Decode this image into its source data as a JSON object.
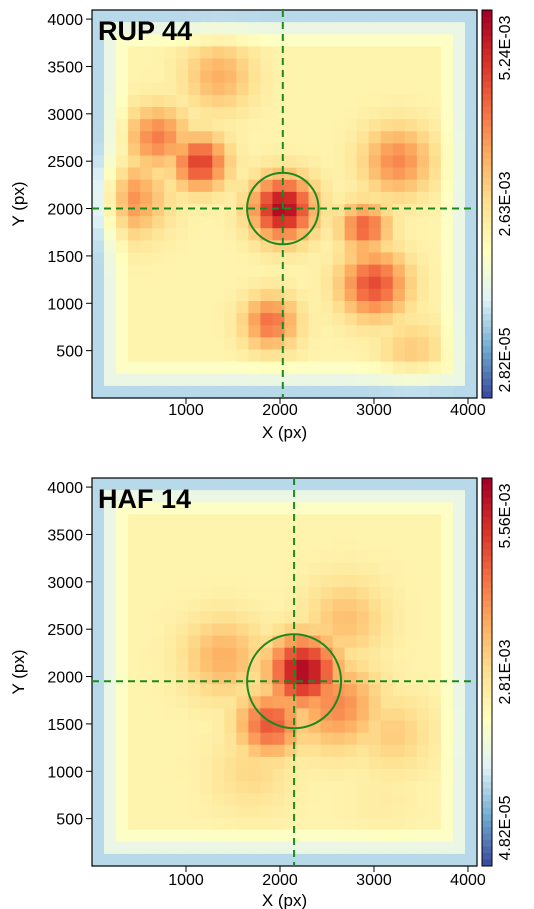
{
  "chart_data": [
    {
      "type": "heatmap",
      "title": "RUP 44",
      "xlabel": "X (px)",
      "ylabel": "Y (px)",
      "xlim": [
        0,
        4096
      ],
      "ylim": [
        0,
        4096
      ],
      "x_ticks": [
        1000,
        2000,
        3000,
        4000
      ],
      "y_ticks": [
        500,
        1000,
        1500,
        2000,
        2500,
        3000,
        3500,
        4000
      ],
      "colorbar": {
        "min": 2.82e-05,
        "max": 0.00524,
        "tick_labels": [
          "5.24E-03",
          "2.63E-03",
          "2.82E-05"
        ]
      },
      "colormap": [
        "#3b4fa0",
        "#74add1",
        "#e0f3f8",
        "#ffffbf",
        "#fee090",
        "#fdae61",
        "#f46d43",
        "#d73027",
        "#a50026"
      ],
      "center": {
        "x": 2030,
        "y": 2000
      },
      "core_radius": 380,
      "density_peaks": [
        {
          "x": 2030,
          "y": 2000,
          "level": 0.98,
          "sigma": 230
        },
        {
          "x": 1150,
          "y": 2480,
          "level": 0.85,
          "sigma": 200
        },
        {
          "x": 700,
          "y": 2750,
          "level": 0.72,
          "sigma": 230
        },
        {
          "x": 3000,
          "y": 1200,
          "level": 0.82,
          "sigma": 250
        },
        {
          "x": 1900,
          "y": 800,
          "level": 0.75,
          "sigma": 200
        },
        {
          "x": 2900,
          "y": 1800,
          "level": 0.78,
          "sigma": 180
        },
        {
          "x": 400,
          "y": 2100,
          "level": 0.68,
          "sigma": 280
        },
        {
          "x": 3250,
          "y": 2500,
          "level": 0.7,
          "sigma": 260
        },
        {
          "x": 1350,
          "y": 3400,
          "level": 0.62,
          "sigma": 260
        },
        {
          "x": 3400,
          "y": 500,
          "level": 0.55,
          "sigma": 240
        }
      ]
    },
    {
      "type": "heatmap",
      "title": "HAF 14",
      "xlabel": "X (px)",
      "ylabel": "Y (px)",
      "xlim": [
        0,
        4096
      ],
      "ylim": [
        0,
        4096
      ],
      "x_ticks": [
        1000,
        2000,
        3000,
        4000
      ],
      "y_ticks": [
        500,
        1000,
        1500,
        2000,
        2500,
        3000,
        3500,
        4000
      ],
      "colorbar": {
        "min": 4.82e-05,
        "max": 0.00556,
        "tick_labels": [
          "5.56E-03",
          "2.81E-03",
          "4.82E-05"
        ]
      },
      "colormap": [
        "#3b4fa0",
        "#74add1",
        "#e0f3f8",
        "#ffffbf",
        "#fee090",
        "#fdae61",
        "#f46d43",
        "#d73027",
        "#a50026"
      ],
      "center": {
        "x": 2150,
        "y": 1950
      },
      "core_radius": 500,
      "density_peaks": [
        {
          "x": 2250,
          "y": 2050,
          "level": 0.98,
          "sigma": 260
        },
        {
          "x": 1900,
          "y": 1500,
          "level": 0.8,
          "sigma": 240
        },
        {
          "x": 2600,
          "y": 1700,
          "level": 0.7,
          "sigma": 320
        },
        {
          "x": 1400,
          "y": 2200,
          "level": 0.62,
          "sigma": 300
        },
        {
          "x": 3200,
          "y": 1400,
          "level": 0.55,
          "sigma": 280
        },
        {
          "x": 2700,
          "y": 2600,
          "level": 0.58,
          "sigma": 300
        },
        {
          "x": 1700,
          "y": 1000,
          "level": 0.52,
          "sigma": 300
        },
        {
          "x": 3100,
          "y": 700,
          "level": 0.45,
          "sigma": 250
        }
      ]
    }
  ]
}
